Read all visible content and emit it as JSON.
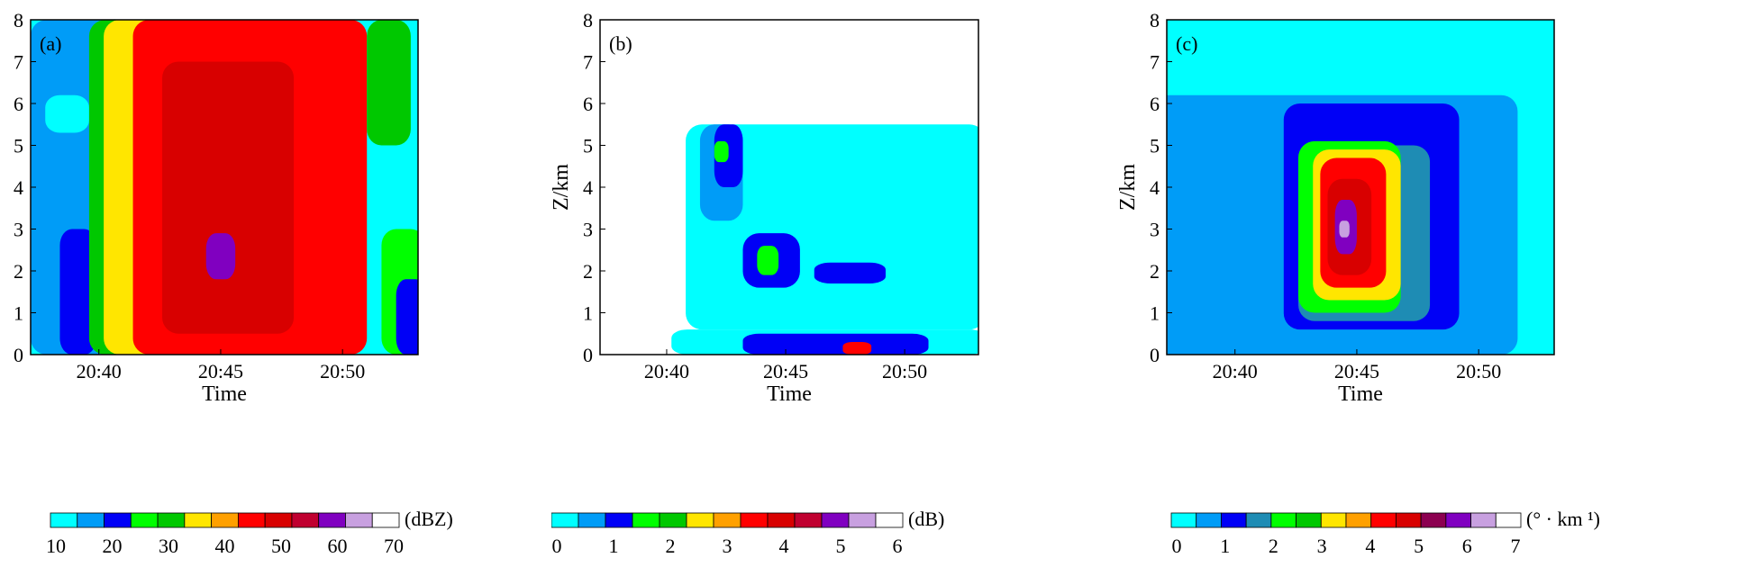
{
  "chart_data": [
    {
      "type": "heatmap",
      "panel_label": "(a)",
      "xlabel": "Time",
      "ylabel": "",
      "x_ticks": [
        "20:40",
        "20:45",
        "20:50"
      ],
      "y_ticks": [
        "0",
        "1",
        "2",
        "3",
        "4",
        "5",
        "6",
        "7",
        "8"
      ],
      "ylim": [
        0,
        8
      ],
      "colorbar": {
        "unit": "(dBZ)",
        "tick_labels": [
          "10",
          "20",
          "30",
          "40",
          "50",
          "60",
          "70"
        ],
        "colors": [
          "#00ffff",
          "#009cf7",
          "#0000f6",
          "#00ff00",
          "#00c800",
          "#ffe600",
          "#ffa000",
          "#ff0000",
          "#d80000",
          "#c00030",
          "#8000c0",
          "#c8a0e0",
          "#ffffff"
        ]
      },
      "regions": [
        {
          "level": 1,
          "t": [
            20.62,
            20.68
          ],
          "z": [
            0,
            8
          ]
        },
        {
          "level": 0,
          "t": [
            20.63,
            20.66
          ],
          "z": [
            5.3,
            6.2
          ]
        },
        {
          "level": 2,
          "t": [
            20.64,
            20.665
          ],
          "z": [
            0,
            3
          ]
        },
        {
          "level": 4,
          "t": [
            20.66,
            20.7
          ],
          "z": [
            0,
            8
          ]
        },
        {
          "level": 5,
          "t": [
            20.67,
            20.72
          ],
          "z": [
            0,
            8
          ]
        },
        {
          "level": 6,
          "t": [
            20.69,
            20.74
          ],
          "z": [
            0,
            8
          ]
        },
        {
          "level": 7,
          "t": [
            20.69,
            20.85
          ],
          "z": [
            0,
            8
          ]
        },
        {
          "level": 8,
          "t": [
            20.71,
            20.8
          ],
          "z": [
            0.5,
            7
          ]
        },
        {
          "level": 10,
          "t": [
            20.74,
            20.76
          ],
          "z": [
            1.8,
            2.9
          ]
        },
        {
          "level": 4,
          "t": [
            20.85,
            20.88
          ],
          "z": [
            5,
            8
          ]
        },
        {
          "level": 3,
          "t": [
            20.86,
            20.89
          ],
          "z": [
            0,
            3
          ]
        },
        {
          "level": 2,
          "t": [
            20.87,
            20.89
          ],
          "z": [
            0,
            1.8
          ]
        }
      ]
    },
    {
      "type": "heatmap",
      "panel_label": "(b)",
      "xlabel": "Time",
      "ylabel": "Z/km",
      "x_ticks": [
        "20:40",
        "20:45",
        "20:50"
      ],
      "y_ticks": [
        "0",
        "1",
        "2",
        "3",
        "4",
        "5",
        "6",
        "7",
        "8"
      ],
      "ylim": [
        0,
        8
      ],
      "colorbar": {
        "unit": "(dB)",
        "tick_labels": [
          "0",
          "1",
          "2",
          "3",
          "4",
          "5",
          "6"
        ],
        "colors": [
          "#00ffff",
          "#009cf7",
          "#0000f6",
          "#00ff00",
          "#00c800",
          "#ffe600",
          "#ffa000",
          "#ff0000",
          "#d80000",
          "#c00030",
          "#8000c0",
          "#c8a0e0",
          "#ffffff"
        ]
      },
      "regions": [
        {
          "level": 0,
          "t": [
            20.68,
            20.89
          ],
          "z": [
            0.6,
            5.5
          ]
        },
        {
          "level": 1,
          "t": [
            20.69,
            20.72
          ],
          "z": [
            3.2,
            5.5
          ]
        },
        {
          "level": 2,
          "t": [
            20.7,
            20.72
          ],
          "z": [
            4,
            5.5
          ]
        },
        {
          "level": 3,
          "t": [
            20.7,
            20.71
          ],
          "z": [
            4.6,
            5.1
          ]
        },
        {
          "level": 2,
          "t": [
            20.72,
            20.76
          ],
          "z": [
            1.6,
            2.9
          ]
        },
        {
          "level": 3,
          "t": [
            20.73,
            20.745
          ],
          "z": [
            1.9,
            2.6
          ]
        },
        {
          "level": 2,
          "t": [
            20.77,
            20.82
          ],
          "z": [
            1.7,
            2.2
          ]
        },
        {
          "level": 0,
          "t": [
            20.67,
            20.89
          ],
          "z": [
            0,
            0.6
          ]
        },
        {
          "level": 2,
          "t": [
            20.72,
            20.85
          ],
          "z": [
            0,
            0.5
          ]
        },
        {
          "level": 7,
          "t": [
            20.79,
            20.81
          ],
          "z": [
            0,
            0.3
          ]
        }
      ]
    },
    {
      "type": "heatmap",
      "panel_label": "(c)",
      "xlabel": "Time",
      "ylabel": "Z/km",
      "x_ticks": [
        "20:40",
        "20:45",
        "20:50"
      ],
      "y_ticks": [
        "0",
        "1",
        "2",
        "3",
        "4",
        "5",
        "6",
        "7",
        "8"
      ],
      "ylim": [
        0,
        8
      ],
      "colorbar": {
        "unit": "(° · km ¹)",
        "tick_labels": [
          "0",
          "1",
          "2",
          "3",
          "4",
          "5",
          "6",
          "7"
        ],
        "colors": [
          "#00ffff",
          "#009cf7",
          "#0000f6",
          "#1e8cb4",
          "#00ff00",
          "#00c800",
          "#ffe600",
          "#ffa000",
          "#ff0000",
          "#d80000",
          "#8c0050",
          "#8000c0",
          "#c8a0e0",
          "#ffffff"
        ]
      },
      "regions": [
        {
          "level": 1,
          "t": [
            20.61,
            20.86
          ],
          "z": [
            0,
            6.2
          ]
        },
        {
          "level": 2,
          "t": [
            20.7,
            20.82
          ],
          "z": [
            0.6,
            6
          ]
        },
        {
          "level": 3,
          "t": [
            20.71,
            20.8
          ],
          "z": [
            0.8,
            5
          ]
        },
        {
          "level": 4,
          "t": [
            20.71,
            20.78
          ],
          "z": [
            1,
            5.1
          ]
        },
        {
          "level": 6,
          "t": [
            20.72,
            20.78
          ],
          "z": [
            1.3,
            4.9
          ]
        },
        {
          "level": 8,
          "t": [
            20.725,
            20.77
          ],
          "z": [
            1.6,
            4.7
          ]
        },
        {
          "level": 9,
          "t": [
            20.73,
            20.76
          ],
          "z": [
            1.9,
            4.2
          ]
        },
        {
          "level": 11,
          "t": [
            20.735,
            20.75
          ],
          "z": [
            2.4,
            3.7
          ]
        },
        {
          "level": 12,
          "t": [
            20.738,
            20.745
          ],
          "z": [
            2.8,
            3.2
          ]
        }
      ]
    }
  ]
}
